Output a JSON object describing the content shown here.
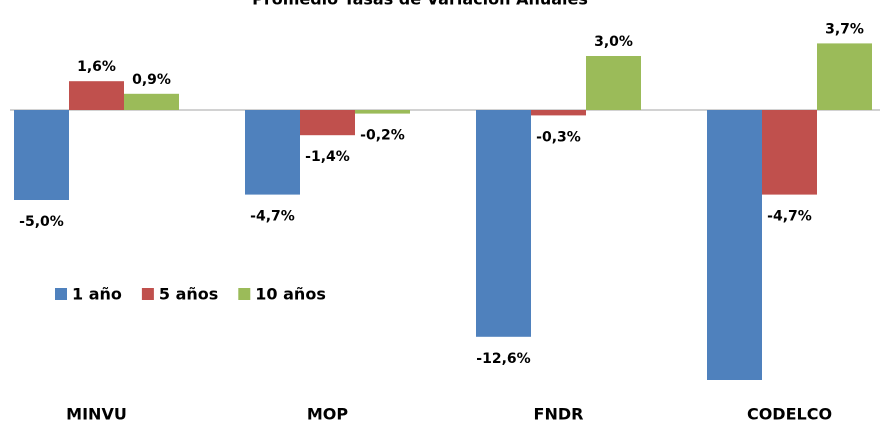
{
  "chart_data": {
    "type": "bar",
    "title": "Promedio Tasas de Variación Anuales",
    "categories": [
      "MINVU",
      "MOP",
      "FNDR",
      "CODELCO"
    ],
    "series": [
      {
        "name": "1 año",
        "color": "#4f81bd",
        "values": [
          -5.0,
          -4.7,
          -12.6,
          -15.0
        ],
        "value_labels": [
          "-5,0%",
          "-4,7%",
          "-12,6%",
          null
        ]
      },
      {
        "name": "5 años",
        "color": "#c0504d",
        "values": [
          1.6,
          -1.4,
          -0.3,
          -4.7
        ],
        "value_labels": [
          "1,6%",
          "-1,4%",
          "-0,3%",
          "-4,7%"
        ]
      },
      {
        "name": "10 años",
        "color": "#9bbb59",
        "values": [
          0.9,
          -0.2,
          3.0,
          3.7
        ],
        "value_labels": [
          "0,9%",
          "-0,2%",
          "3,0%",
          "3,7%"
        ]
      }
    ],
    "ylim": [
      -15.5,
      6
    ],
    "legend": "left"
  }
}
